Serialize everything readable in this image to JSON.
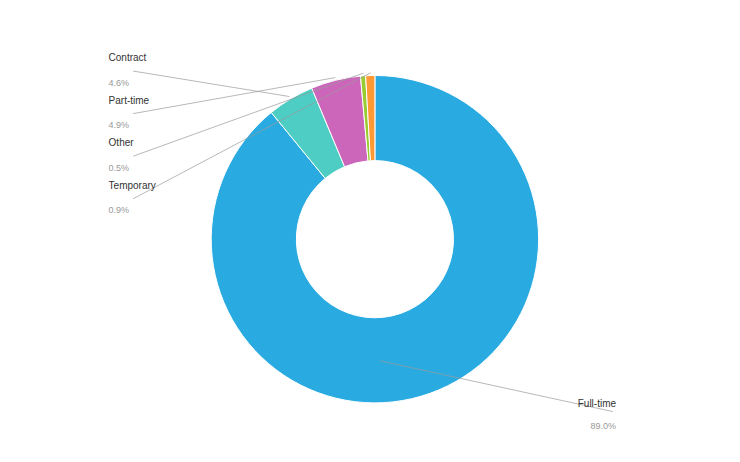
{
  "chart_data": {
    "type": "donut",
    "categories": [
      "Full-time",
      "Contract",
      "Part-time",
      "Other",
      "Temporary"
    ],
    "values": [
      89.0,
      4.6,
      4.9,
      0.5,
      0.9
    ],
    "value_labels": [
      "89.0%",
      "4.6%",
      "4.9%",
      "0.5%",
      "0.9%"
    ],
    "colors": [
      "#29abe2",
      "#4ecdc4",
      "#cc66bb",
      "#99cc33",
      "#ff9933"
    ],
    "data_labels": true
  }
}
